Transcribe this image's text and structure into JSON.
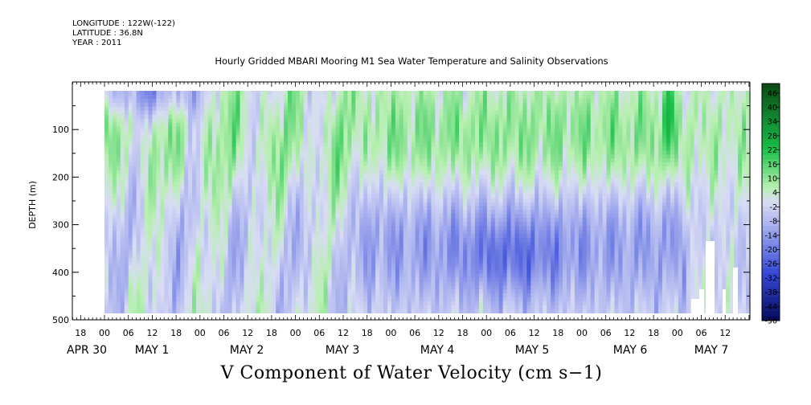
{
  "header": {
    "longitude": "LONGITUDE : 122W(-122)",
    "latitude": "LATITUDE : 36.8N",
    "year": "YEAR : 2011"
  },
  "chart_data": {
    "type": "heatmap",
    "title": "Hourly Gridded MBARI Mooring M1 Sea Water Temperature and Salinity Observations",
    "caption": "V Component of Water Velocity (cm s−1)",
    "ylabel": "DEPTH (m)",
    "y_axis": {
      "ylim": [
        500,
        0
      ],
      "inverted": true,
      "ticks": [
        100,
        200,
        300,
        400,
        500
      ],
      "tick_labels": [
        "100",
        "200",
        "300",
        "400",
        "500"
      ]
    },
    "x_axis": {
      "hour_labels": [
        "18",
        "00",
        "06",
        "12",
        "18",
        "00",
        "06",
        "12",
        "18",
        "00",
        "06",
        "12",
        "18",
        "00",
        "06",
        "12",
        "18",
        "00",
        "06",
        "12",
        "18",
        "00",
        "06",
        "12",
        "18",
        "00",
        "06",
        "12"
      ],
      "date_labels": [
        "APR 30",
        "MAY  1",
        "MAY  2",
        "MAY  3",
        "MAY  4",
        "MAY  5",
        "MAY  6",
        "MAY  7"
      ]
    },
    "colorbar": {
      "min": -50,
      "max": 50,
      "labels": [
        "46",
        "40",
        "34",
        "28",
        "22",
        "16",
        "10",
        "4",
        "-2",
        "-8",
        "-14",
        "-20",
        "-26",
        "-32",
        "-38",
        "-44",
        "-50"
      ]
    },
    "grid": false,
    "field_description": "Green regions indicate positive (northward) velocity, mainly upper 250 m especially MAY 3–6; blue regions indicate negative velocity, strongest below 250 m MAY 3–6 and near surface APR 30–MAY 1."
  },
  "colors": {
    "positive_dark": "#0a4a14",
    "positive_mid": "#19c14a",
    "positive_light": "#b8f0b0",
    "neutral": "#d8dcf4",
    "negative_light": "#a8b0ee",
    "negative_mid": "#3548d8",
    "negative_dark": "#060b5a"
  }
}
